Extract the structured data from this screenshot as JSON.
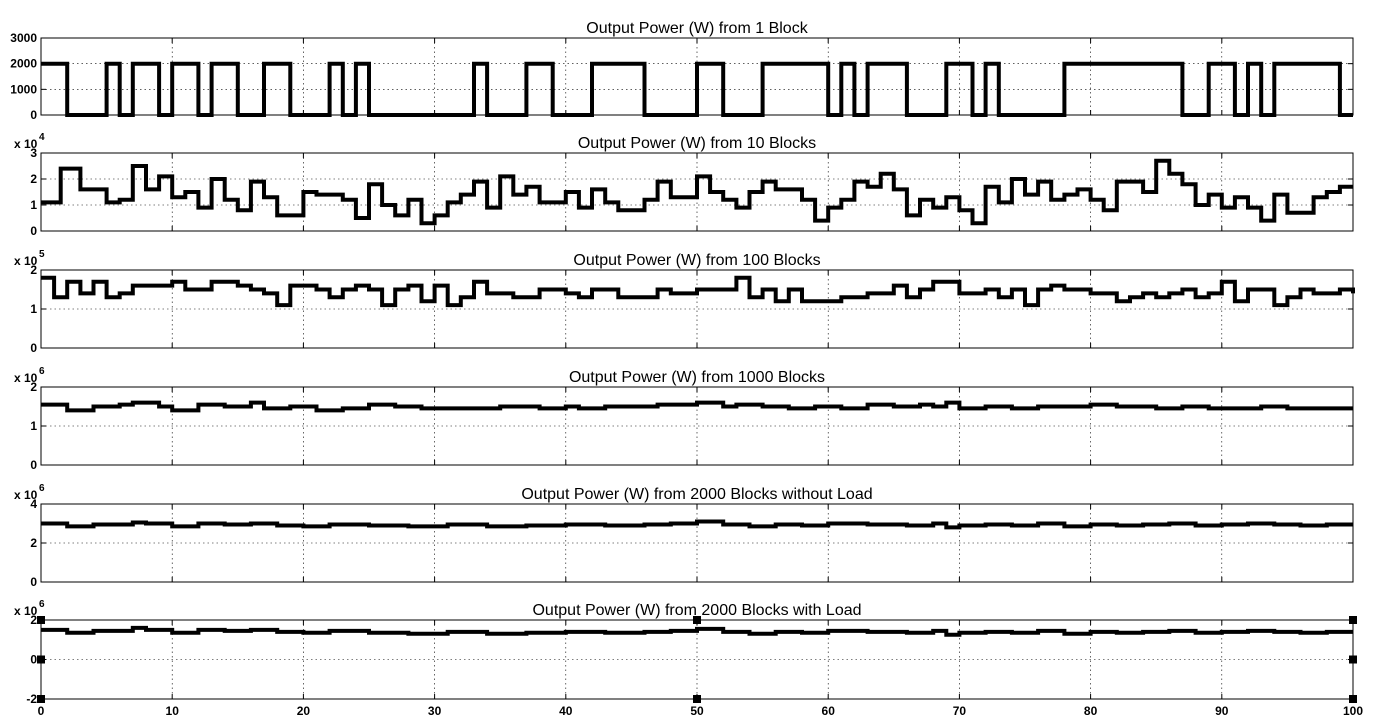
{
  "chart_data": [
    {
      "type": "line",
      "title": "Output Power (W) from 1 Block",
      "exponent_label": "",
      "xlim": [
        0,
        100
      ],
      "ylim": [
        0,
        3000
      ],
      "yticks": [
        0,
        1000,
        2000,
        3000
      ],
      "ytick_labels": [
        "0",
        "1000",
        "2000",
        "3000"
      ],
      "grid": true,
      "selected": false,
      "series": [
        {
          "x": [
            0,
            2,
            2,
            5,
            5,
            6,
            6,
            7,
            7,
            9,
            9,
            10,
            10,
            12,
            12,
            13,
            13,
            15,
            15,
            17,
            17,
            19,
            19,
            22,
            22,
            23,
            23,
            24,
            24,
            25,
            25,
            33,
            33,
            34,
            34,
            37,
            37,
            39,
            39,
            42,
            42,
            46,
            46,
            50,
            50,
            52,
            52,
            55,
            55,
            60,
            60,
            61,
            61,
            62,
            62,
            63,
            63,
            66,
            66,
            69,
            69,
            71,
            71,
            72,
            72,
            73,
            73,
            78,
            78,
            87,
            87,
            89,
            89,
            91,
            91,
            92,
            92,
            93,
            93,
            94,
            94,
            99,
            99,
            100
          ],
          "y": [
            2000,
            2000,
            0,
            0,
            2000,
            2000,
            0,
            0,
            2000,
            2000,
            0,
            0,
            2000,
            2000,
            0,
            0,
            2000,
            2000,
            0,
            0,
            2000,
            2000,
            0,
            0,
            2000,
            2000,
            0,
            0,
            2000,
            2000,
            0,
            0,
            2000,
            2000,
            0,
            0,
            2000,
            2000,
            0,
            0,
            2000,
            2000,
            0,
            0,
            2000,
            2000,
            0,
            0,
            2000,
            2000,
            0,
            0,
            2000,
            2000,
            0,
            0,
            2000,
            2000,
            0,
            0,
            2000,
            2000,
            0,
            0,
            2000,
            2000,
            0,
            0,
            2000,
            2000,
            0,
            0,
            2000,
            2000,
            0,
            0,
            2000,
            2000,
            0,
            0,
            2000,
            2000,
            0,
            0
          ]
        }
      ]
    },
    {
      "type": "line",
      "title": "Output Power (W) from 10 Blocks",
      "exponent_label": "x 10",
      "exponent_power": "4",
      "xlim": [
        0,
        100
      ],
      "ylim": [
        0,
        3
      ],
      "yticks": [
        0,
        1,
        2,
        3
      ],
      "ytick_labels": [
        "0",
        "1",
        "2",
        "3"
      ],
      "grid": true,
      "selected": false,
      "series": [
        {
          "x": [
            0,
            1,
            1.5,
            3,
            5,
            6,
            7,
            8,
            9,
            10,
            11,
            12,
            13,
            14,
            15,
            16,
            17,
            18,
            20,
            21,
            23,
            24,
            25,
            26,
            27,
            28,
            29,
            30,
            31,
            32,
            33,
            34,
            35,
            36,
            37,
            38,
            40,
            41,
            42,
            43,
            44,
            46,
            47,
            48,
            50,
            51,
            52,
            53,
            54,
            55,
            56,
            58,
            59,
            60,
            61,
            62,
            63,
            64,
            65,
            66,
            67,
            68,
            69,
            70,
            71,
            72,
            73,
            74,
            75,
            76,
            77,
            78,
            79,
            80,
            81,
            82,
            84,
            85,
            86,
            87,
            88,
            89,
            90,
            91,
            92,
            93,
            94,
            95,
            97,
            98,
            99,
            100
          ],
          "y": [
            1.1,
            1.1,
            2.4,
            1.6,
            1.1,
            1.2,
            2.5,
            1.6,
            2.1,
            1.3,
            1.5,
            0.9,
            2.0,
            1.2,
            0.8,
            1.9,
            1.3,
            0.6,
            1.5,
            1.4,
            1.2,
            0.5,
            1.8,
            1.0,
            0.6,
            1.2,
            0.3,
            0.6,
            1.1,
            1.4,
            1.9,
            0.9,
            2.1,
            1.4,
            1.7,
            1.1,
            1.5,
            0.9,
            1.6,
            1.1,
            0.8,
            1.2,
            1.9,
            1.3,
            2.1,
            1.5,
            1.2,
            0.9,
            1.5,
            1.9,
            1.6,
            1.2,
            0.4,
            0.9,
            1.2,
            1.9,
            1.7,
            2.2,
            1.6,
            0.6,
            1.2,
            0.9,
            1.3,
            0.8,
            0.3,
            1.7,
            1.1,
            2.0,
            1.4,
            1.9,
            1.2,
            1.4,
            1.6,
            1.2,
            0.8,
            1.9,
            1.5,
            2.7,
            2.2,
            1.8,
            1.0,
            1.4,
            0.9,
            1.3,
            0.9,
            0.4,
            1.4,
            0.7,
            1.3,
            1.5,
            1.7,
            1.7
          ]
        }
      ]
    },
    {
      "type": "line",
      "title": "Output Power (W) from 100 Blocks",
      "exponent_label": "x 10",
      "exponent_power": "5",
      "xlim": [
        0,
        100
      ],
      "ylim": [
        0,
        2
      ],
      "yticks": [
        0,
        1,
        2
      ],
      "ytick_labels": [
        "0",
        "1",
        "2"
      ],
      "grid": true,
      "selected": false,
      "series": [
        {
          "x": [
            0,
            1,
            2,
            3,
            4,
            5,
            6,
            7,
            8,
            10,
            11,
            12,
            13,
            15,
            16,
            17,
            18,
            19,
            21,
            22,
            23,
            24,
            25,
            26,
            27,
            28,
            29,
            30,
            31,
            32,
            33,
            34,
            36,
            38,
            40,
            41,
            42,
            44,
            45,
            47,
            48,
            50,
            52,
            53,
            54,
            55,
            56,
            57,
            58,
            61,
            63,
            65,
            66,
            67,
            68,
            70,
            72,
            73,
            74,
            75,
            76,
            77,
            78,
            80,
            81,
            82,
            83,
            84,
            85,
            86,
            87,
            88,
            89,
            90,
            91,
            92,
            94,
            95,
            96,
            97,
            99,
            100
          ],
          "y": [
            1.8,
            1.3,
            1.7,
            1.4,
            1.7,
            1.3,
            1.4,
            1.6,
            1.6,
            1.7,
            1.5,
            1.5,
            1.7,
            1.6,
            1.5,
            1.4,
            1.1,
            1.6,
            1.5,
            1.3,
            1.5,
            1.6,
            1.5,
            1.1,
            1.5,
            1.6,
            1.2,
            1.6,
            1.1,
            1.3,
            1.7,
            1.4,
            1.3,
            1.5,
            1.4,
            1.3,
            1.5,
            1.3,
            1.3,
            1.5,
            1.4,
            1.5,
            1.5,
            1.8,
            1.3,
            1.5,
            1.2,
            1.5,
            1.2,
            1.3,
            1.4,
            1.6,
            1.3,
            1.5,
            1.7,
            1.4,
            1.5,
            1.3,
            1.5,
            1.1,
            1.5,
            1.6,
            1.5,
            1.4,
            1.4,
            1.2,
            1.3,
            1.4,
            1.3,
            1.4,
            1.5,
            1.3,
            1.4,
            1.7,
            1.2,
            1.5,
            1.1,
            1.3,
            1.5,
            1.4,
            1.5,
            1.4
          ]
        }
      ]
    },
    {
      "type": "line",
      "title": "Output Power (W) from 1000 Blocks",
      "exponent_label": "x 10",
      "exponent_power": "6",
      "xlim": [
        0,
        100
      ],
      "ylim": [
        0,
        2
      ],
      "yticks": [
        0,
        1,
        2
      ],
      "ytick_labels": [
        "0",
        "1",
        "2"
      ],
      "grid": true,
      "selected": false,
      "series": [
        {
          "x": [
            0,
            2,
            4,
            6,
            7,
            9,
            10,
            12,
            14,
            16,
            17,
            19,
            21,
            23,
            25,
            27,
            29,
            32,
            35,
            38,
            40,
            41,
            43,
            45,
            47,
            49,
            50,
            52,
            53,
            55,
            57,
            59,
            61,
            63,
            65,
            67,
            68,
            69,
            70,
            72,
            74,
            76,
            78,
            80,
            82,
            85,
            87,
            89,
            91,
            93,
            95,
            97,
            100
          ],
          "y": [
            1.55,
            1.4,
            1.5,
            1.55,
            1.6,
            1.5,
            1.4,
            1.55,
            1.5,
            1.6,
            1.45,
            1.5,
            1.4,
            1.45,
            1.55,
            1.5,
            1.45,
            1.45,
            1.5,
            1.45,
            1.5,
            1.45,
            1.5,
            1.5,
            1.55,
            1.55,
            1.6,
            1.5,
            1.55,
            1.5,
            1.45,
            1.5,
            1.45,
            1.55,
            1.5,
            1.55,
            1.5,
            1.6,
            1.45,
            1.5,
            1.45,
            1.5,
            1.5,
            1.55,
            1.5,
            1.45,
            1.5,
            1.45,
            1.45,
            1.5,
            1.45,
            1.45,
            1.45
          ]
        }
      ]
    },
    {
      "type": "line",
      "title": "Output Power (W) from 2000 Blocks without Load",
      "exponent_label": "x 10",
      "exponent_power": "6",
      "xlim": [
        0,
        100
      ],
      "ylim": [
        0,
        4
      ],
      "yticks": [
        0,
        2,
        4
      ],
      "ytick_labels": [
        "0",
        "2",
        "4"
      ],
      "grid": true,
      "selected": false,
      "series": [
        {
          "x": [
            0,
            2,
            4,
            6,
            7,
            8,
            10,
            12,
            14,
            16,
            18,
            20,
            22,
            25,
            28,
            31,
            34,
            37,
            40,
            43,
            46,
            48,
            50,
            52,
            54,
            56,
            58,
            60,
            63,
            66,
            68,
            69,
            70,
            72,
            74,
            76,
            78,
            80,
            82,
            84,
            86,
            88,
            90,
            92,
            94,
            96,
            98,
            100
          ],
          "y": [
            3.0,
            2.85,
            2.95,
            2.95,
            3.05,
            3.0,
            2.85,
            3.0,
            2.95,
            3.0,
            2.9,
            2.85,
            2.95,
            2.9,
            2.85,
            2.95,
            2.85,
            2.9,
            2.95,
            2.9,
            2.95,
            3.0,
            3.1,
            2.95,
            2.85,
            2.95,
            2.9,
            3.0,
            2.95,
            2.9,
            3.0,
            2.8,
            2.9,
            2.95,
            2.9,
            3.0,
            2.85,
            2.95,
            2.9,
            2.95,
            3.0,
            2.9,
            2.95,
            3.0,
            2.95,
            2.9,
            2.95,
            2.95
          ]
        }
      ]
    },
    {
      "type": "line",
      "title": "Output Power (W) from 2000 Blocks with Load",
      "exponent_label": "x 10",
      "exponent_power": "6",
      "xlim": [
        0,
        100
      ],
      "ylim": [
        -2,
        2
      ],
      "yticks": [
        -2,
        0,
        2
      ],
      "ytick_labels": [
        "-2",
        "0",
        "2"
      ],
      "grid": true,
      "selected": true,
      "series": [
        {
          "x": [
            0,
            2,
            4,
            6,
            7,
            8,
            10,
            12,
            14,
            16,
            18,
            20,
            22,
            25,
            28,
            31,
            34,
            37,
            40,
            43,
            46,
            48,
            50,
            52,
            54,
            56,
            58,
            60,
            63,
            66,
            68,
            69,
            70,
            72,
            74,
            76,
            78,
            80,
            82,
            84,
            86,
            88,
            90,
            92,
            94,
            96,
            98,
            100
          ],
          "y": [
            1.5,
            1.35,
            1.45,
            1.45,
            1.6,
            1.5,
            1.35,
            1.5,
            1.45,
            1.5,
            1.4,
            1.35,
            1.45,
            1.35,
            1.3,
            1.4,
            1.3,
            1.35,
            1.4,
            1.35,
            1.4,
            1.45,
            1.55,
            1.4,
            1.3,
            1.4,
            1.35,
            1.45,
            1.4,
            1.35,
            1.45,
            1.25,
            1.35,
            1.4,
            1.35,
            1.45,
            1.3,
            1.4,
            1.35,
            1.4,
            1.45,
            1.35,
            1.4,
            1.45,
            1.4,
            1.35,
            1.4,
            1.4
          ]
        }
      ]
    }
  ],
  "x_axis": {
    "tick_values": [
      0,
      10,
      20,
      30,
      40,
      50,
      60,
      70,
      80,
      90,
      100
    ],
    "tick_labels": [
      "0",
      "10",
      "20",
      "30",
      "40",
      "50",
      "60",
      "70",
      "80",
      "90",
      "100"
    ]
  }
}
